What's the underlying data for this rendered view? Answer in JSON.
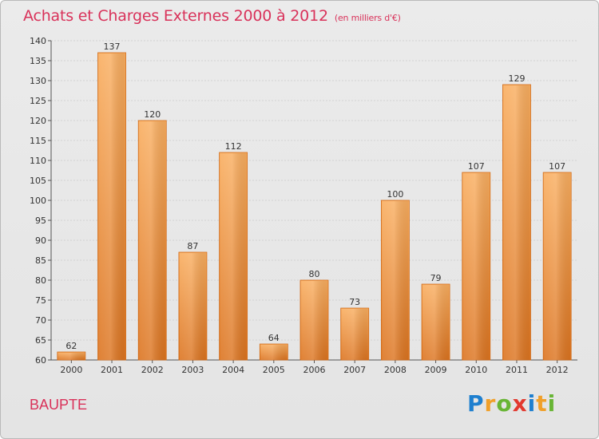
{
  "header": {
    "title": "Achats et Charges Externes 2000 à 2012",
    "unit": "(en milliers d'€)"
  },
  "town": "BAUPTE",
  "brand": {
    "text": "Proxiti",
    "letters": [
      {
        "ch": "P",
        "color": "#1e7fcf"
      },
      {
        "ch": "r",
        "color": "#f0a02a"
      },
      {
        "ch": "o",
        "color": "#68b535"
      },
      {
        "ch": "x",
        "color": "#e2392f"
      },
      {
        "ch": "i",
        "color": "#1e7fcf"
      },
      {
        "ch": "t",
        "color": "#f0a02a"
      },
      {
        "ch": "i",
        "color": "#68b535"
      }
    ]
  },
  "colors": {
    "title": "#d9325a",
    "bar_light": "#f7a85a",
    "bar_dark": "#e07a26",
    "bar_edge": "#d06a18"
  },
  "chart_data": {
    "type": "bar",
    "title": "Achats et Charges Externes 2000 à 2012",
    "xlabel": "",
    "ylabel": "",
    "categories": [
      "2000",
      "2001",
      "2002",
      "2003",
      "2004",
      "2005",
      "2006",
      "2007",
      "2008",
      "2009",
      "2010",
      "2011",
      "2012"
    ],
    "values": [
      62,
      137,
      120,
      87,
      112,
      64,
      80,
      73,
      100,
      79,
      107,
      129,
      107
    ],
    "ylim": [
      60,
      140
    ],
    "yticks": [
      60,
      65,
      70,
      75,
      80,
      85,
      90,
      95,
      100,
      105,
      110,
      115,
      120,
      125,
      130,
      135,
      140
    ],
    "grid": true
  }
}
